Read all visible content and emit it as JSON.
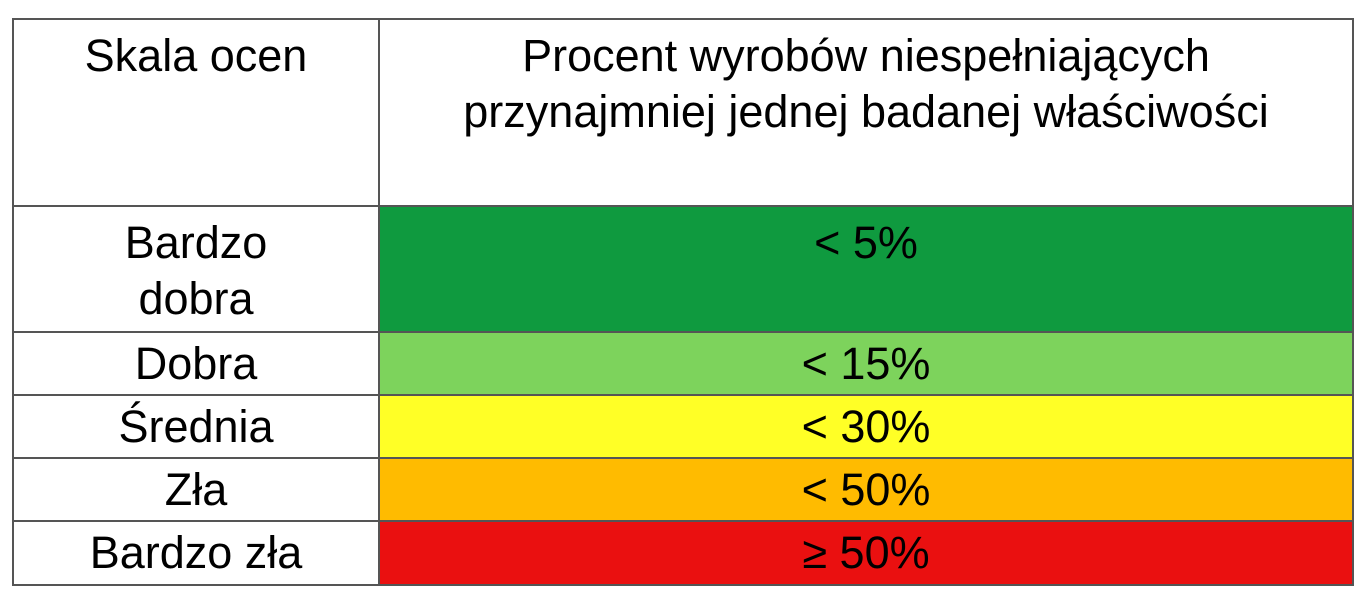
{
  "header": {
    "scale_label": "Skala ocen",
    "percent_label": "Procent wyrobów niespełniających przynajmniej jednej badanej właściwości"
  },
  "rows": [
    {
      "grade": "Bardzo dobra",
      "range": "< 5%",
      "color": "#0f9a3f"
    },
    {
      "grade": "Dobra",
      "range": "< 15%",
      "color": "#7dd35c"
    },
    {
      "grade": "Średnia",
      "range": "< 30%",
      "color": "#ffff26"
    },
    {
      "grade": "Zła",
      "range": "< 50%",
      "color": "#ffbb00"
    },
    {
      "grade": "Bardzo zła",
      "range": "≥ 50%",
      "color": "#ea1010"
    }
  ]
}
